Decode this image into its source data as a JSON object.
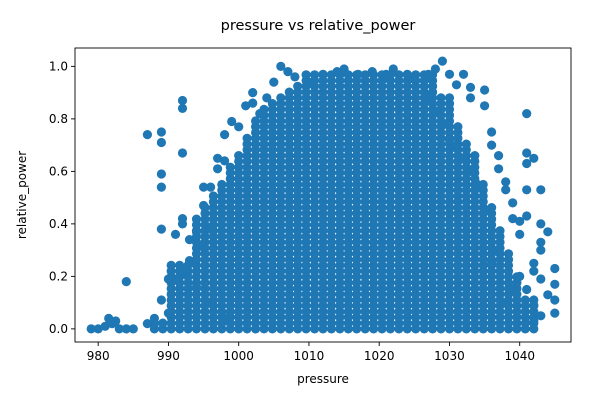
{
  "chart_data": {
    "type": "scatter",
    "title": "pressure vs relative_power",
    "xlabel": "pressure",
    "ylabel": "relative_power",
    "xlim": [
      976.7,
      1047.3
    ],
    "ylim": [
      -0.05,
      1.07
    ],
    "xticks": [
      980,
      990,
      1000,
      1010,
      1020,
      1030,
      1040
    ],
    "yticks": [
      0.0,
      0.2,
      0.4,
      0.6,
      0.8,
      1.0
    ],
    "xtick_labels": [
      "980",
      "990",
      "1000",
      "1010",
      "1020",
      "1030",
      "1040"
    ],
    "ytick_labels": [
      "0.0",
      "0.2",
      "0.4",
      "0.6",
      "0.8",
      "1.0"
    ],
    "grid": false,
    "marker_color": "#1f77b4",
    "series": [
      {
        "points": [
          [
            979,
            0.0
          ],
          [
            980,
            0.0
          ],
          [
            981,
            0.01
          ],
          [
            981.5,
            0.04
          ],
          [
            982,
            0.02
          ],
          [
            982.5,
            0.03
          ],
          [
            983,
            0.0
          ],
          [
            984,
            0.18
          ],
          [
            984,
            0.0
          ],
          [
            985,
            0.0
          ],
          [
            987,
            0.74
          ],
          [
            988,
            0.02
          ],
          [
            988,
            0.04
          ],
          [
            989,
            0.75
          ],
          [
            989,
            0.71
          ],
          [
            989,
            0.59
          ],
          [
            989,
            0.54
          ],
          [
            989,
            0.38
          ],
          [
            989,
            0.11
          ],
          [
            990,
            0.19
          ],
          [
            991,
            0.36
          ],
          [
            991,
            0.19
          ],
          [
            992,
            0.87
          ],
          [
            992,
            0.84
          ],
          [
            992,
            0.67
          ],
          [
            992,
            0.42
          ],
          [
            992,
            0.4
          ],
          [
            993,
            0.34
          ],
          [
            993,
            0.26
          ],
          [
            994,
            0.37
          ],
          [
            995,
            0.54
          ],
          [
            995,
            0.47
          ],
          [
            995,
            0.31
          ],
          [
            996,
            0.54
          ],
          [
            996,
            0.38
          ],
          [
            997,
            0.65
          ],
          [
            997,
            0.61
          ],
          [
            998,
            0.74
          ],
          [
            998,
            0.64
          ],
          [
            999,
            0.79
          ],
          [
            1000,
            0.77
          ],
          [
            1001,
            0.85
          ],
          [
            1002,
            0.9
          ],
          [
            1002,
            0.86
          ],
          [
            1003,
            0.82
          ],
          [
            1004,
            0.88
          ],
          [
            1005,
            0.94
          ],
          [
            1006,
            1.0
          ],
          [
            1007,
            0.98
          ],
          [
            1008,
            0.96
          ],
          [
            1010,
            0.94
          ],
          [
            1012,
            0.97
          ],
          [
            1014,
            0.98
          ],
          [
            1015,
            0.99
          ],
          [
            1017,
            0.97
          ],
          [
            1019,
            0.98
          ],
          [
            1021,
            0.97
          ],
          [
            1022,
            0.99
          ],
          [
            1024,
            0.97
          ],
          [
            1025,
            0.95
          ],
          [
            1027,
            0.97
          ],
          [
            1028,
            0.99
          ],
          [
            1029,
            1.02
          ],
          [
            1030,
            0.97
          ],
          [
            1031,
            0.93
          ],
          [
            1032,
            0.97
          ],
          [
            1033,
            0.88
          ],
          [
            1033,
            0.92
          ],
          [
            1035,
            0.91
          ],
          [
            1035,
            0.85
          ],
          [
            1036,
            0.75
          ],
          [
            1036,
            0.7
          ],
          [
            1037,
            0.66
          ],
          [
            1037,
            0.61
          ],
          [
            1038,
            0.56
          ],
          [
            1038,
            0.53
          ],
          [
            1039,
            0.48
          ],
          [
            1039,
            0.42
          ],
          [
            1040,
            0.41
          ],
          [
            1040,
            0.36
          ],
          [
            1041,
            0.82
          ],
          [
            1041,
            0.67
          ],
          [
            1041,
            0.63
          ],
          [
            1041,
            0.53
          ],
          [
            1041,
            0.43
          ],
          [
            1041,
            0.15
          ],
          [
            1042,
            0.65
          ],
          [
            1042,
            0.25
          ],
          [
            1042,
            0.22
          ],
          [
            1042,
            0.09
          ],
          [
            1042,
            0.03
          ],
          [
            1043,
            0.53
          ],
          [
            1043,
            0.4
          ],
          [
            1043,
            0.33
          ],
          [
            1043,
            0.3
          ],
          [
            1043,
            0.19
          ],
          [
            1043,
            0.05
          ],
          [
            1044,
            0.37
          ],
          [
            1044,
            0.13
          ],
          [
            1045,
            0.23
          ],
          [
            1045,
            0.17
          ],
          [
            1045,
            0.11
          ],
          [
            1045,
            0.06
          ],
          [
            1040,
            0.2
          ],
          [
            1039,
            0.15
          ],
          [
            1038,
            0.1
          ],
          [
            1037,
            0.3
          ],
          [
            1036,
            0.25
          ],
          [
            1035,
            0.45
          ],
          [
            1034,
            0.55
          ],
          [
            1033,
            0.6
          ],
          [
            1032,
            0.65
          ],
          [
            1031,
            0.7
          ],
          [
            1030,
            0.72
          ],
          [
            1029,
            0.78
          ],
          [
            1028,
            0.83
          ],
          [
            1027,
            0.88
          ],
          [
            998,
            0.04
          ],
          [
            996,
            0.1
          ],
          [
            994,
            0.16
          ],
          [
            992,
            0.22
          ],
          [
            990,
            0.06
          ],
          [
            987,
            0.02
          ]
        ]
      }
    ]
  }
}
